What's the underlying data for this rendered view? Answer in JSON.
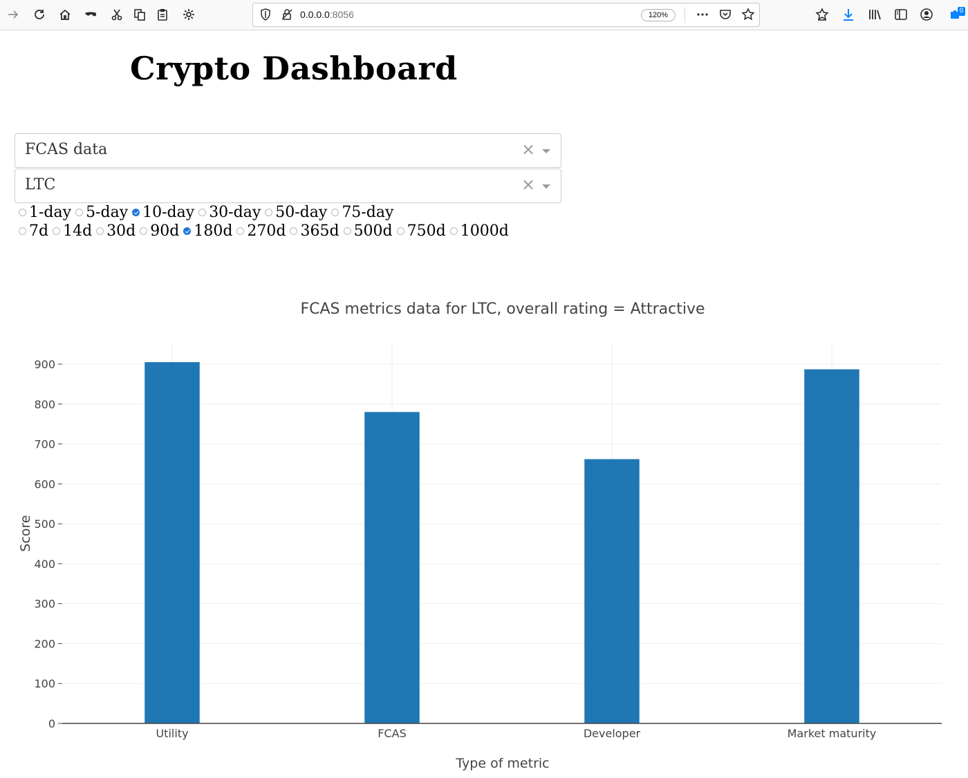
{
  "browser": {
    "url_host": "0.0.0.0",
    "url_port": ":8056",
    "zoom": "120%",
    "downloads_badge": "0",
    "toolbar_icons": [
      "forward-arrow-icon",
      "reload-icon",
      "home-icon",
      "mask-icon",
      "cut-icon",
      "copy-icon",
      "paste-icon",
      "gear-icon"
    ],
    "right_icons": [
      "reader-star-icon",
      "download-icon",
      "library-icon",
      "sidebar-icon",
      "account-icon",
      "extension-icon"
    ]
  },
  "page": {
    "title": "Crypto Dashboard"
  },
  "controls": {
    "data_dropdown": {
      "value": "FCAS data",
      "clear": "×"
    },
    "coin_dropdown": {
      "value": "LTC",
      "clear": "×"
    },
    "ma_options": [
      {
        "label": "1-day",
        "checked": false
      },
      {
        "label": "5-day",
        "checked": false
      },
      {
        "label": "10-day",
        "checked": true
      },
      {
        "label": "30-day",
        "checked": false
      },
      {
        "label": "50-day",
        "checked": false
      },
      {
        "label": "75-day",
        "checked": false
      }
    ],
    "period_options": [
      {
        "label": "7d",
        "checked": false
      },
      {
        "label": "14d",
        "checked": false
      },
      {
        "label": "30d",
        "checked": false
      },
      {
        "label": "90d",
        "checked": false
      },
      {
        "label": "180d",
        "checked": true
      },
      {
        "label": "270d",
        "checked": false
      },
      {
        "label": "365d",
        "checked": false
      },
      {
        "label": "500d",
        "checked": false
      },
      {
        "label": "750d",
        "checked": false
      },
      {
        "label": "1000d",
        "checked": false
      }
    ]
  },
  "chart_data": {
    "type": "bar",
    "title": "FCAS metrics data for LTC, overall rating = Attractive",
    "xlabel": "Type of metric",
    "ylabel": "Score",
    "categories": [
      "Utility",
      "FCAS",
      "Developer",
      "Market maturity"
    ],
    "values": [
      905,
      780,
      662,
      887
    ],
    "ylim": [
      0,
      950
    ],
    "yticks": [
      0,
      100,
      200,
      300,
      400,
      500,
      600,
      700,
      800,
      900
    ],
    "bar_color": "#1f77b4",
    "grid": true,
    "legend": "none"
  }
}
